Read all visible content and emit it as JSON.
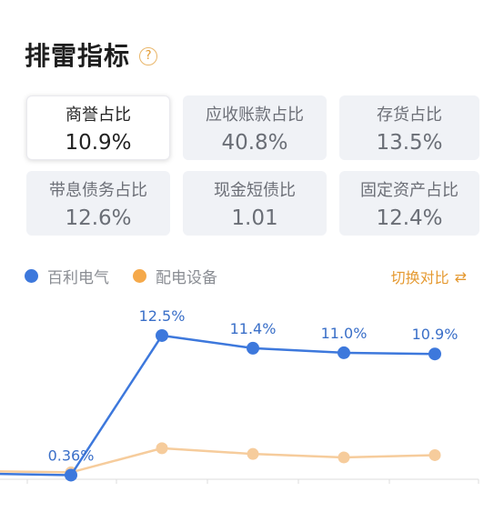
{
  "header": {
    "title": "排雷指标",
    "help_icon": "?"
  },
  "metrics": [
    {
      "label": "商誉占比",
      "value": "10.9%",
      "active": true
    },
    {
      "label": "应收账款占比",
      "value": "40.8%"
    },
    {
      "label": "存货占比",
      "value": "13.5%"
    },
    {
      "label": "带息债务占比",
      "value": "12.6%"
    },
    {
      "label": "现金短债比",
      "value": "1.01"
    },
    {
      "label": "固定资产占比",
      "value": "12.4%"
    }
  ],
  "legend": {
    "company": {
      "label": "百利电气",
      "color": "#3d78dc"
    },
    "industry": {
      "label": "配电设备",
      "color": "#f5a94a"
    },
    "switch_label": "切换对比",
    "switch_icon": "swap-icon"
  },
  "chart_data": {
    "type": "line",
    "metric": "商誉占比",
    "ylim": [
      0,
      14
    ],
    "series": [
      {
        "name": "百利电气",
        "color": "#3d78dc",
        "values": [
          0.5,
          0.36,
          12.5,
          11.4,
          11.0,
          10.9
        ],
        "labels": [
          "",
          "0.36%",
          "12.5%",
          "11.4%",
          "11.0%",
          "10.9%"
        ]
      },
      {
        "name": "配电设备",
        "color": "#f6cc9c",
        "values": [
          0.7,
          0.6,
          2.7,
          2.2,
          1.9,
          2.1
        ]
      }
    ]
  }
}
